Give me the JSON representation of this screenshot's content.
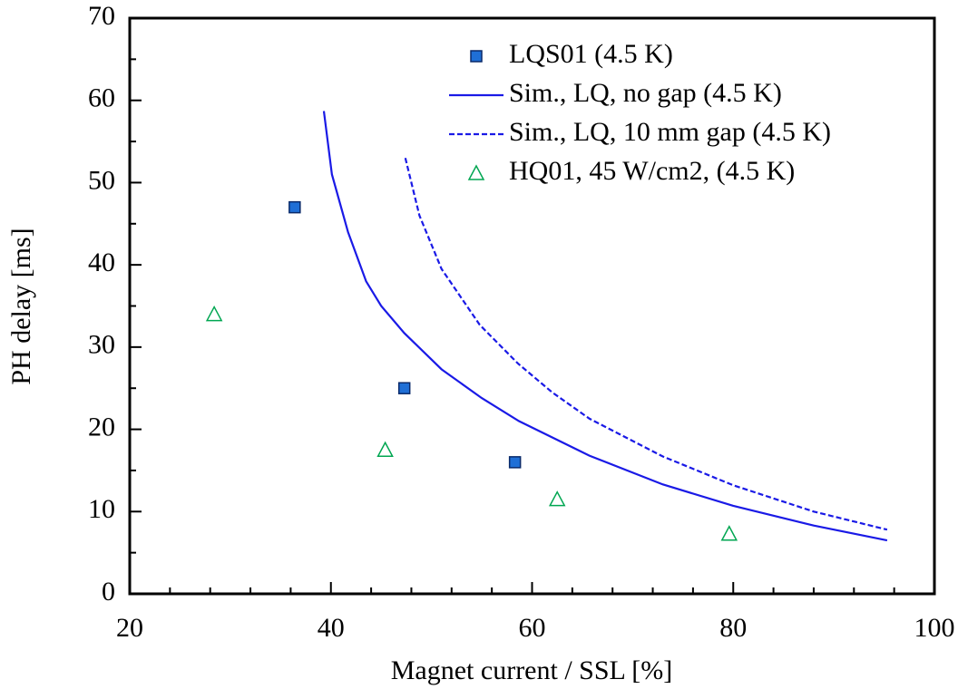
{
  "chart_data": {
    "type": "scatter",
    "x_label": "Magnet current / SSL [%]",
    "y_label": "PH delay [ms]",
    "xlim": [
      20,
      100
    ],
    "xticks": [
      20,
      40,
      60,
      80,
      100
    ],
    "ylim": [
      0,
      70
    ],
    "yticks": [
      0,
      10,
      20,
      30,
      40,
      50,
      60,
      70
    ],
    "legend": "upper right",
    "series": [
      {
        "name": "LQS01 (4.5 K)",
        "kind": "square",
        "color": "#1f6fd6",
        "x": [
          36.4,
          47.3,
          58.3
        ],
        "values": [
          47,
          25,
          16
        ]
      },
      {
        "name": "Sim., LQ, no gap (4.5 K)",
        "kind": "solid",
        "color": "#1a1ae6",
        "x": [
          39.3,
          40.1,
          41.7,
          43.5,
          45,
          47.3,
          51,
          55,
          58.7,
          65.7,
          73,
          80,
          88,
          95.3
        ],
        "values": [
          58.7,
          51,
          44,
          38,
          35,
          31.7,
          27.3,
          23.8,
          21,
          16.8,
          13.3,
          10.7,
          8.3,
          6.5
        ]
      },
      {
        "name": "Sim., LQ, 10 mm gap (4.5 K)",
        "kind": "dashed",
        "color": "#1a1ae6",
        "x": [
          47.4,
          48.8,
          51,
          54.8,
          58.6,
          62,
          65.7,
          73,
          80,
          88,
          95.3
        ],
        "values": [
          53,
          46,
          39.5,
          32.7,
          28,
          24.5,
          21.3,
          16.7,
          13.2,
          10,
          7.8
        ]
      },
      {
        "name": "HQ01, 45 W/cm2, (4.5 K)",
        "kind": "triangle",
        "color": "#00a651",
        "x": [
          28.4,
          45.4,
          62.5,
          79.6
        ],
        "values": [
          34,
          17.5,
          11.5,
          7.3
        ]
      }
    ]
  }
}
